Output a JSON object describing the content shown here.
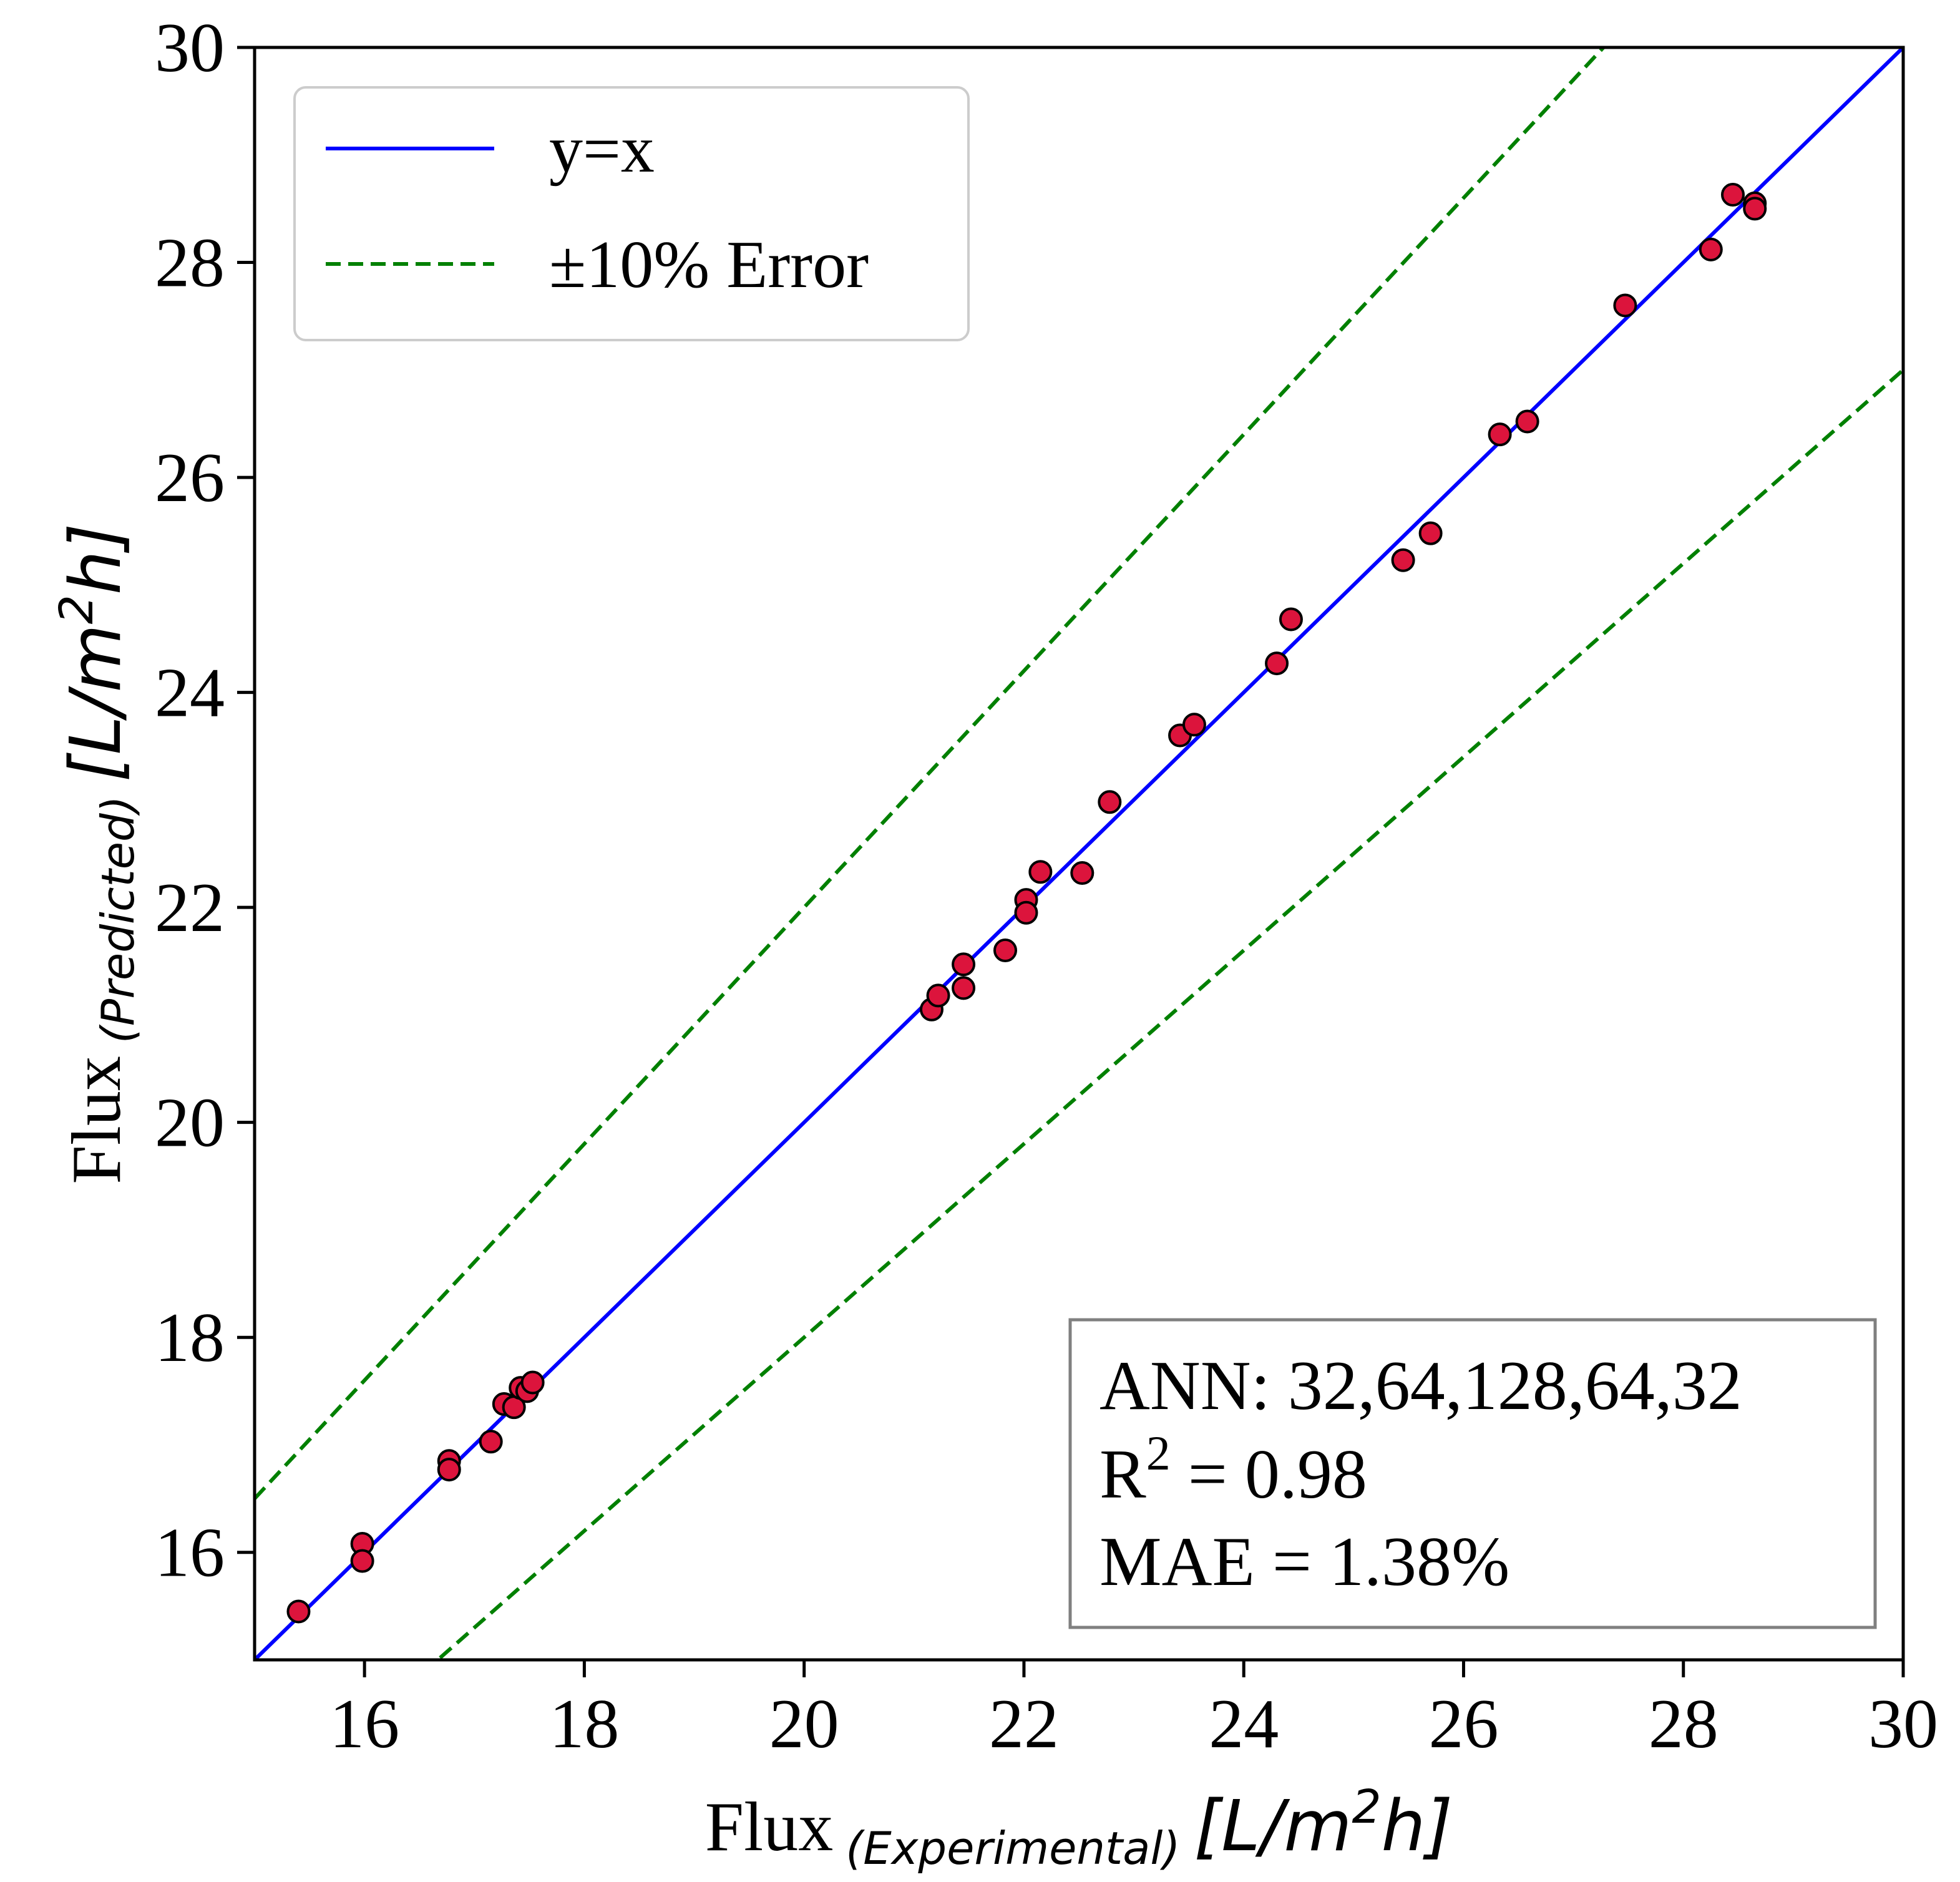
{
  "chart_data": {
    "type": "scatter",
    "xlim": [
      15,
      30
    ],
    "ylim": [
      15,
      30
    ],
    "x_ticks": [
      16,
      18,
      20,
      22,
      24,
      26,
      28,
      30
    ],
    "y_ticks": [
      16,
      18,
      20,
      22,
      24,
      26,
      28,
      30
    ],
    "xlabel": {
      "main": "Flux",
      "sub": "(Experimental)",
      "unit_open": "[L/m",
      "unit_sup": "2",
      "unit_close": "h]"
    },
    "ylabel": {
      "main": "Flux",
      "sub": "(Predicted)",
      "unit_open": "[L/m",
      "unit_sup": "2",
      "unit_close": "h]"
    },
    "legend": {
      "position": "upper-left",
      "items": [
        {
          "label": "y=x",
          "color": "#0000ff",
          "style": "solid"
        },
        {
          "label": "±10% Error",
          "color": "#008000",
          "style": "dashed"
        }
      ]
    },
    "annotation": {
      "position": "lower-right",
      "line1": "ANN: 32,64,128,64,32",
      "line2_prefix": "R",
      "line2_sup": "2",
      "line2_suffix": " = 0.98",
      "line3": "MAE = 1.38%"
    },
    "reference_lines": [
      {
        "name": "y=x",
        "factor": 1.0,
        "color": "#0000ff",
        "style": "solid"
      },
      {
        "name": "+10%",
        "factor": 1.1,
        "color": "#008000",
        "style": "dashed"
      },
      {
        "name": "-10%",
        "factor": 0.9,
        "color": "#008000",
        "style": "dashed"
      }
    ],
    "marker_color": "#dc143c",
    "marker_edge": "#000000",
    "points": [
      {
        "x": 15.4,
        "y": 15.45
      },
      {
        "x": 15.98,
        "y": 16.08
      },
      {
        "x": 15.98,
        "y": 15.92
      },
      {
        "x": 16.77,
        "y": 16.85
      },
      {
        "x": 16.77,
        "y": 16.77
      },
      {
        "x": 17.15,
        "y": 17.03
      },
      {
        "x": 17.27,
        "y": 17.38
      },
      {
        "x": 17.36,
        "y": 17.35
      },
      {
        "x": 17.42,
        "y": 17.53
      },
      {
        "x": 17.48,
        "y": 17.5
      },
      {
        "x": 17.53,
        "y": 17.58
      },
      {
        "x": 21.16,
        "y": 21.05
      },
      {
        "x": 21.22,
        "y": 21.18
      },
      {
        "x": 21.45,
        "y": 21.47
      },
      {
        "x": 21.45,
        "y": 21.25
      },
      {
        "x": 21.83,
        "y": 21.6
      },
      {
        "x": 22.02,
        "y": 22.07
      },
      {
        "x": 22.02,
        "y": 21.95
      },
      {
        "x": 22.15,
        "y": 22.33
      },
      {
        "x": 22.53,
        "y": 22.32
      },
      {
        "x": 22.78,
        "y": 22.98
      },
      {
        "x": 23.42,
        "y": 23.6
      },
      {
        "x": 23.55,
        "y": 23.7
      },
      {
        "x": 24.3,
        "y": 24.27
      },
      {
        "x": 24.43,
        "y": 24.68
      },
      {
        "x": 25.45,
        "y": 25.23
      },
      {
        "x": 25.7,
        "y": 25.48
      },
      {
        "x": 26.33,
        "y": 26.4
      },
      {
        "x": 26.58,
        "y": 26.52
      },
      {
        "x": 27.47,
        "y": 27.6
      },
      {
        "x": 28.25,
        "y": 28.12
      },
      {
        "x": 28.45,
        "y": 28.63
      },
      {
        "x": 28.65,
        "y": 28.55
      },
      {
        "x": 28.65,
        "y": 28.5
      }
    ]
  }
}
